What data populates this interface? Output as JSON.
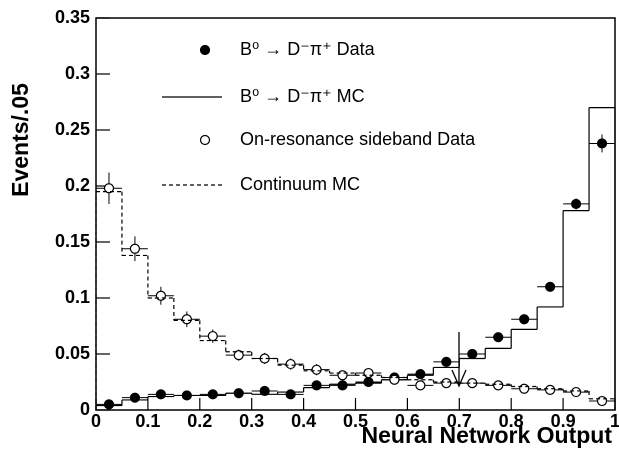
{
  "chart_data": {
    "type": "histogram",
    "x_label": "Neural Network Output",
    "y_label": "Events/.05",
    "bins": [
      0,
      0.05,
      0.1,
      0.15,
      0.2,
      0.25,
      0.3,
      0.35,
      0.4,
      0.45,
      0.5,
      0.55,
      0.6,
      0.65,
      0.7,
      0.75,
      0.8,
      0.85,
      0.9,
      0.95,
      1
    ],
    "xlim": [
      0,
      1
    ],
    "xticks": [
      0,
      0.1,
      0.2,
      0.3,
      0.4,
      0.5,
      0.6,
      0.7,
      0.8,
      0.9,
      1
    ],
    "ylim": [
      0,
      0.35
    ],
    "yticks": [
      0,
      0.05,
      0.1,
      0.15,
      0.2,
      0.25,
      0.3,
      0.35
    ],
    "series": [
      {
        "name": "B⁰ → D⁻π⁺ Data",
        "style": "filled-marker",
        "color": "#000000",
        "values": [
          0.005,
          0.011,
          0.014,
          0.013,
          0.014,
          0.015,
          0.017,
          0.014,
          0.022,
          0.022,
          0.025,
          0.029,
          0.032,
          0.043,
          0.05,
          0.065,
          0.081,
          0.11,
          0.184,
          0.238
        ],
        "errors": [
          0.001,
          0.002,
          0.002,
          0.002,
          0.002,
          0.002,
          0.002,
          0.002,
          0.002,
          0.002,
          0.002,
          0.002,
          0.002,
          0.002,
          0.003,
          0.003,
          0.003,
          0.003,
          0.005,
          0.008
        ]
      },
      {
        "name": "B⁰ → D⁻π⁺ MC",
        "style": "solid-step",
        "color": "#000000",
        "values": [
          0.004,
          0.009,
          0.012,
          0.013,
          0.013,
          0.015,
          0.014,
          0.016,
          0.02,
          0.023,
          0.024,
          0.027,
          0.031,
          0.038,
          0.046,
          0.055,
          0.072,
          0.092,
          0.178,
          0.27
        ]
      },
      {
        "name": "On-resonance sideband Data",
        "style": "open-marker",
        "color": "#000000",
        "values": [
          0.198,
          0.144,
          0.102,
          0.081,
          0.066,
          0.049,
          0.046,
          0.041,
          0.036,
          0.031,
          0.033,
          0.027,
          0.022,
          0.024,
          0.024,
          0.022,
          0.019,
          0.018,
          0.016,
          0.008
        ],
        "errors": [
          0.014,
          0.011,
          0.008,
          0.007,
          0.006,
          0.005,
          0.005,
          0.005,
          0.005,
          0.004,
          0.004,
          0.004,
          0.004,
          0.004,
          0.004,
          0.004,
          0.003,
          0.003,
          0.003,
          0.003
        ]
      },
      {
        "name": "Continuum MC",
        "style": "dashed-step",
        "color": "#000000",
        "values": [
          0.195,
          0.138,
          0.1,
          0.08,
          0.062,
          0.052,
          0.046,
          0.04,
          0.035,
          0.033,
          0.031,
          0.029,
          0.027,
          0.025,
          0.024,
          0.023,
          0.021,
          0.019,
          0.017,
          0.01
        ]
      }
    ]
  }
}
